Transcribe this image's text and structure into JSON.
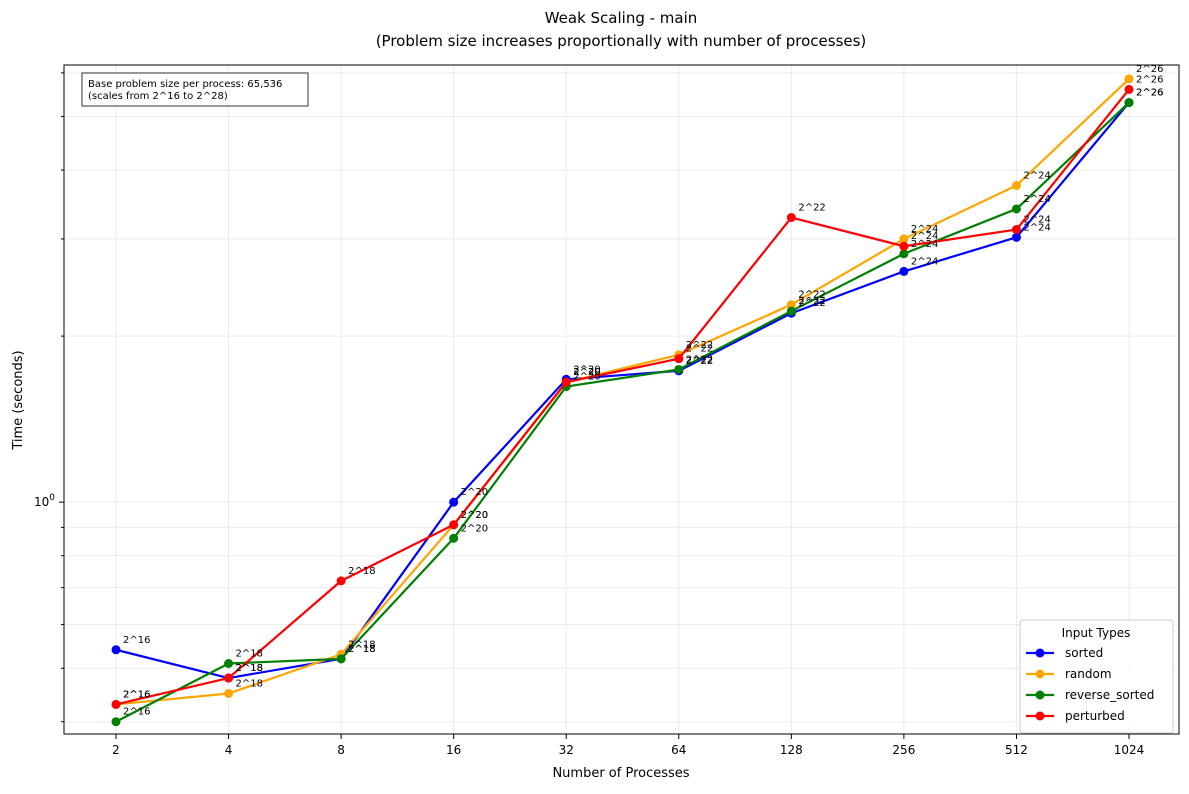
{
  "chart_data": {
    "type": "line",
    "title_line1": "Weak Scaling - main",
    "title_line2": "(Problem size increases proportionally with number of processes)",
    "xlabel": "Number of Processes",
    "ylabel": "Time (seconds)",
    "x_scale": "categorical-log2",
    "y_scale": "log",
    "categories": [
      "2",
      "4",
      "8",
      "16",
      "32",
      "64",
      "128",
      "256",
      "512",
      "1024"
    ],
    "ylim": [
      0.38,
      6.2
    ],
    "y_major_ticks": [
      {
        "value": 1,
        "label": "10^0"
      }
    ],
    "grid": true,
    "annotation_box": {
      "line1": "Base problem size per process: 65,536",
      "line2": "(scales from 2^16 to 2^28)"
    },
    "legend": {
      "title": "Input Types",
      "placement": "lower-right"
    },
    "series": [
      {
        "name": "sorted",
        "color": "#0000ff",
        "values": [
          0.54,
          0.48,
          0.52,
          1.0,
          1.67,
          1.73,
          2.2,
          2.62,
          3.02,
          5.3
        ],
        "point_labels": [
          "2^16",
          "2^18",
          "2^18",
          "2^20",
          "2^20",
          "2^22",
          "2^22",
          "2^24",
          "2^24",
          "2^26"
        ]
      },
      {
        "name": "random",
        "color": "#ffa500",
        "values": [
          0.43,
          0.45,
          0.53,
          0.91,
          1.65,
          1.85,
          2.28,
          3.0,
          3.75,
          5.85
        ],
        "point_labels": [
          "2^16",
          "2^18",
          "2^18",
          "2^20",
          "2^20",
          "2^22",
          "2^22",
          "2^24",
          "2^24",
          "2^26"
        ]
      },
      {
        "name": "reverse_sorted",
        "color": "#008000",
        "values": [
          0.4,
          0.51,
          0.52,
          0.86,
          1.62,
          1.74,
          2.22,
          2.82,
          3.4,
          5.3
        ],
        "point_labels": [
          "2^16",
          "2^18",
          "2^18",
          "2^20",
          "2^20",
          "2^22",
          "2^22",
          "2^24",
          "2^24",
          "2^26"
        ]
      },
      {
        "name": "perturbed",
        "color": "#ff0000",
        "values": [
          0.43,
          0.48,
          0.72,
          0.91,
          1.65,
          1.82,
          3.28,
          2.91,
          3.12,
          5.6
        ],
        "point_labels": [
          "2^16",
          "2^18",
          "2^18",
          "2^20",
          "2^20",
          "2^22",
          "2^22",
          "2^24",
          "2^24",
          "2^26"
        ]
      }
    ]
  }
}
